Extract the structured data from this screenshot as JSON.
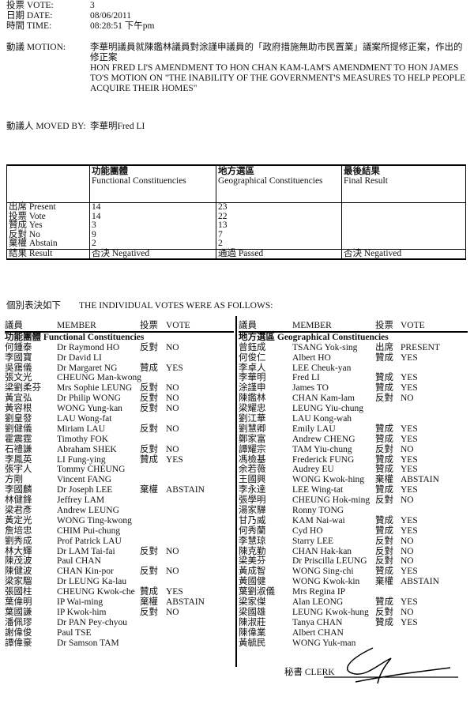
{
  "header": {
    "vote_label": "投票 VOTE:",
    "vote_value": "3",
    "date_label": "日期 DATE:",
    "date_value": "08/06/2011",
    "time_label": "時間 TIME:",
    "time_value": "08:28:51 下午pm",
    "motion_label": "動議 MOTION:",
    "motion_zh": "李華明議員就陳鑑林議員對涂謹申議員的「政府措施無助市民置業」議案所提修正案，作出的修正案",
    "motion_en": "HON FRED LI'S AMENDMENT TO HON CHAN KAM-LAM'S AMENDMENT TO HON JAMES TO'S MOTION ON \"THE INABILITY OF THE GOVERNMENT'S MEASURES TO HELP PEOPLE ACQUIRE THEIR HOMES\"",
    "moved_by_label": "動議人 MOVED BY:",
    "moved_by_value": "李華明Fred LI"
  },
  "summary": {
    "columns": [
      {
        "zh": "功能團體",
        "en": "Functional Constituencies"
      },
      {
        "zh": "地方選區",
        "en": "Geographical Constituencies"
      },
      {
        "zh": "最後結果",
        "en": "Final Result"
      }
    ],
    "rows": [
      {
        "label": "出席 Present",
        "values": [
          "14",
          "23",
          ""
        ]
      },
      {
        "label": "投票 Vote",
        "values": [
          "14",
          "22",
          ""
        ]
      },
      {
        "label": "贊成 Yes",
        "values": [
          "3",
          "13",
          ""
        ],
        "indent": true
      },
      {
        "label": "反對 No",
        "values": [
          "9",
          "7",
          ""
        ],
        "indent": true
      },
      {
        "label": "棄權 Abstain",
        "values": [
          "2",
          "2",
          ""
        ],
        "indent": true
      },
      {
        "label": "結果 Result",
        "values": [
          "否決 Negatived",
          "通過 Passed",
          "否決 Negatived"
        ]
      }
    ]
  },
  "individual_title": "個別表決如下　　THE INDIVIDUAL VOTES WERE AS FOLLOWS:",
  "list_headers": {
    "member_zh": "議員",
    "member_en": "MEMBER",
    "vote_zh": "投票",
    "vote_en": "VOTE"
  },
  "functional": {
    "title": "功能團體 Functional Constituencies",
    "members": [
      [
        "何鍾泰",
        "Dr Raymond HO",
        "反對",
        "NO"
      ],
      [
        "李國寶",
        "Dr David LI",
        "",
        ""
      ],
      [
        "吳靄儀",
        "Dr Margaret NG",
        "贊成",
        "YES"
      ],
      [
        "張文光",
        "CHEUNG Man-kwong",
        "",
        ""
      ],
      [
        "梁劉柔芬",
        "Mrs Sophie LEUNG",
        "反對",
        "NO"
      ],
      [
        "黃宜弘",
        "Dr Philip WONG",
        "反對",
        "NO"
      ],
      [
        "黃容根",
        "WONG Yung-kan",
        "反對",
        "NO"
      ],
      [
        "劉皇發",
        "LAU Wong-fat",
        "",
        ""
      ],
      [
        "劉健儀",
        "Miriam LAU",
        "反對",
        "NO"
      ],
      [
        "霍震霆",
        "Timothy FOK",
        "",
        ""
      ],
      [
        "石禮謙",
        "Abraham SHEK",
        "反對",
        "NO"
      ],
      [
        "李鳳英",
        "LI Fung-ying",
        "贊成",
        "YES"
      ],
      [
        "張宇人",
        "Tommy CHEUNG",
        "",
        ""
      ],
      [
        "方剛",
        "Vincent FANG",
        "",
        ""
      ],
      [
        "李國麟",
        "Dr Joseph LEE",
        "棄權",
        "ABSTAIN"
      ],
      [
        "林健鋒",
        "Jeffrey LAM",
        "",
        ""
      ],
      [
        "梁君彥",
        "Andrew LEUNG",
        "",
        ""
      ],
      [
        "黃定光",
        "WONG Ting-kwong",
        "",
        ""
      ],
      [
        "詹培忠",
        "CHIM Pui-chung",
        "",
        ""
      ],
      [
        "劉秀成",
        "Prof Patrick LAU",
        "",
        ""
      ],
      [
        "林大輝",
        "Dr LAM Tai-fai",
        "反對",
        "NO"
      ],
      [
        "陳茂波",
        "Paul CHAN",
        "",
        ""
      ],
      [
        "陳健波",
        "CHAN Kin-por",
        "反對",
        "NO"
      ],
      [
        "梁家騮",
        "Dr LEUNG Ka-lau",
        "",
        ""
      ],
      [
        "張國柱",
        "CHEUNG Kwok-che",
        "贊成",
        "YES"
      ],
      [
        "葉偉明",
        "IP Wai-ming",
        "棄權",
        "ABSTAIN"
      ],
      [
        "葉國謙",
        "IP Kwok-him",
        "反對",
        "NO"
      ],
      [
        "潘佩璆",
        "Dr PAN Pey-chyou",
        "",
        ""
      ],
      [
        "謝偉俊",
        "Paul TSE",
        "",
        ""
      ],
      [
        "譚偉豪",
        "Dr Samson TAM",
        "",
        ""
      ]
    ]
  },
  "geographical": {
    "title": "地方選區 Geographical Constituencies",
    "members": [
      [
        "曾鈺成",
        "TSANG Yok-sing",
        "出席",
        "PRESENT"
      ],
      [
        "何俊仁",
        "Albert HO",
        "贊成",
        "YES"
      ],
      [
        "李卓人",
        "LEE Cheuk-yan",
        "",
        ""
      ],
      [
        "李華明",
        "Fred LI",
        "贊成",
        "YES"
      ],
      [
        "涂謹申",
        "James TO",
        "贊成",
        "YES"
      ],
      [
        "陳鑑林",
        "CHAN Kam-lam",
        "反對",
        "NO"
      ],
      [
        "梁耀忠",
        "LEUNG Yiu-chung",
        "",
        ""
      ],
      [
        "劉江華",
        "LAU Kong-wah",
        "",
        ""
      ],
      [
        "劉慧卿",
        "Emily LAU",
        "贊成",
        "YES"
      ],
      [
        "鄭家富",
        "Andrew CHENG",
        "贊成",
        "YES"
      ],
      [
        "譚耀宗",
        "TAM Yiu-chung",
        "反對",
        "NO"
      ],
      [
        "馮檢基",
        "Frederick FUNG",
        "贊成",
        "YES"
      ],
      [
        "余若薇",
        "Audrey EU",
        "贊成",
        "YES"
      ],
      [
        "王國興",
        "WONG Kwok-hing",
        "棄權",
        "ABSTAIN"
      ],
      [
        "李永達",
        "LEE Wing-tat",
        "贊成",
        "YES"
      ],
      [
        "張學明",
        "CHEUNG Hok-ming",
        "反對",
        "NO"
      ],
      [
        "湯家驊",
        "Ronny TONG",
        "",
        ""
      ],
      [
        "甘乃威",
        "KAM Nai-wai",
        "贊成",
        "YES"
      ],
      [
        "何秀蘭",
        "Cyd HO",
        "贊成",
        "YES"
      ],
      [
        "李慧琼",
        "Starry LEE",
        "反對",
        "NO"
      ],
      [
        "陳克勤",
        "CHAN Hak-kan",
        "反對",
        "NO"
      ],
      [
        "梁美芬",
        "Dr Priscilla LEUNG",
        "反對",
        "NO"
      ],
      [
        "黃成智",
        "WONG Sing-chi",
        "贊成",
        "YES"
      ],
      [
        "黃國健",
        "WONG Kwok-kin",
        "棄權",
        "ABSTAIN"
      ],
      [
        "葉劉淑儀",
        "Mrs Regina IP",
        "",
        ""
      ],
      [
        "梁家傑",
        "Alan LEONG",
        "贊成",
        "YES"
      ],
      [
        "梁國雄",
        "LEUNG Kwok-hung",
        "反對",
        "NO"
      ],
      [
        "陳淑莊",
        "Tanya CHAN",
        "贊成",
        "YES"
      ],
      [
        "陳偉業",
        "Albert CHAN",
        "",
        ""
      ],
      [
        "黃毓民",
        "WONG Yuk-man",
        "",
        ""
      ]
    ]
  },
  "clerk_label": "秘書 CLERK"
}
